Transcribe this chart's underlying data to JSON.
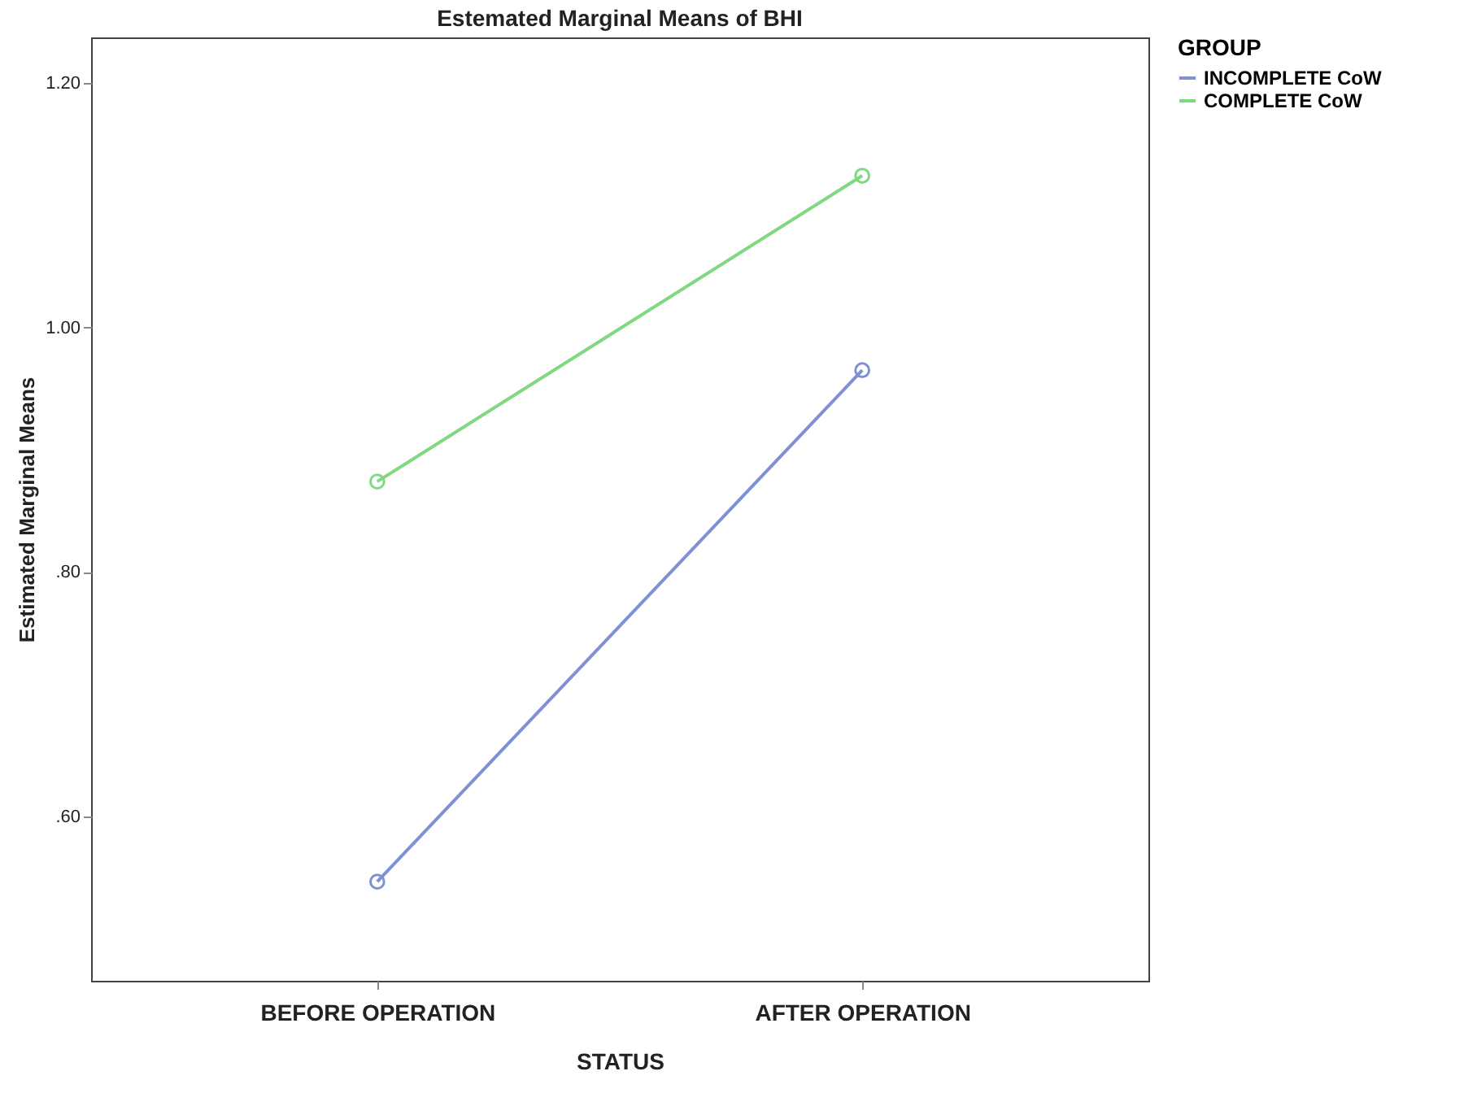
{
  "chart_data": {
    "type": "line",
    "title": "Estemated Marginal Means of BHI",
    "xlabel": "STATUS",
    "ylabel": "Estimated Marginal Means",
    "legend_title": "GROUP",
    "categories": [
      "BEFORE OPERATION",
      "AFTER OPERATION"
    ],
    "series": [
      {
        "name": "INCOMPLETE CoW",
        "color": "#8090d4",
        "values": [
          0.547,
          0.965
        ]
      },
      {
        "name": "COMPLETE CoW",
        "color": "#80d880",
        "values": [
          0.874,
          1.124
        ]
      }
    ],
    "ylim": [
      0.466,
      1.237
    ],
    "yticks": [
      {
        "value": 0.6,
        "label": ".60"
      },
      {
        "value": 0.8,
        "label": ".80"
      },
      {
        "value": 1.0,
        "label": "1.00"
      },
      {
        "value": 1.2,
        "label": "1.20"
      }
    ],
    "marker": "circle",
    "line_style": "solid",
    "grid": false,
    "legend": "top right"
  }
}
